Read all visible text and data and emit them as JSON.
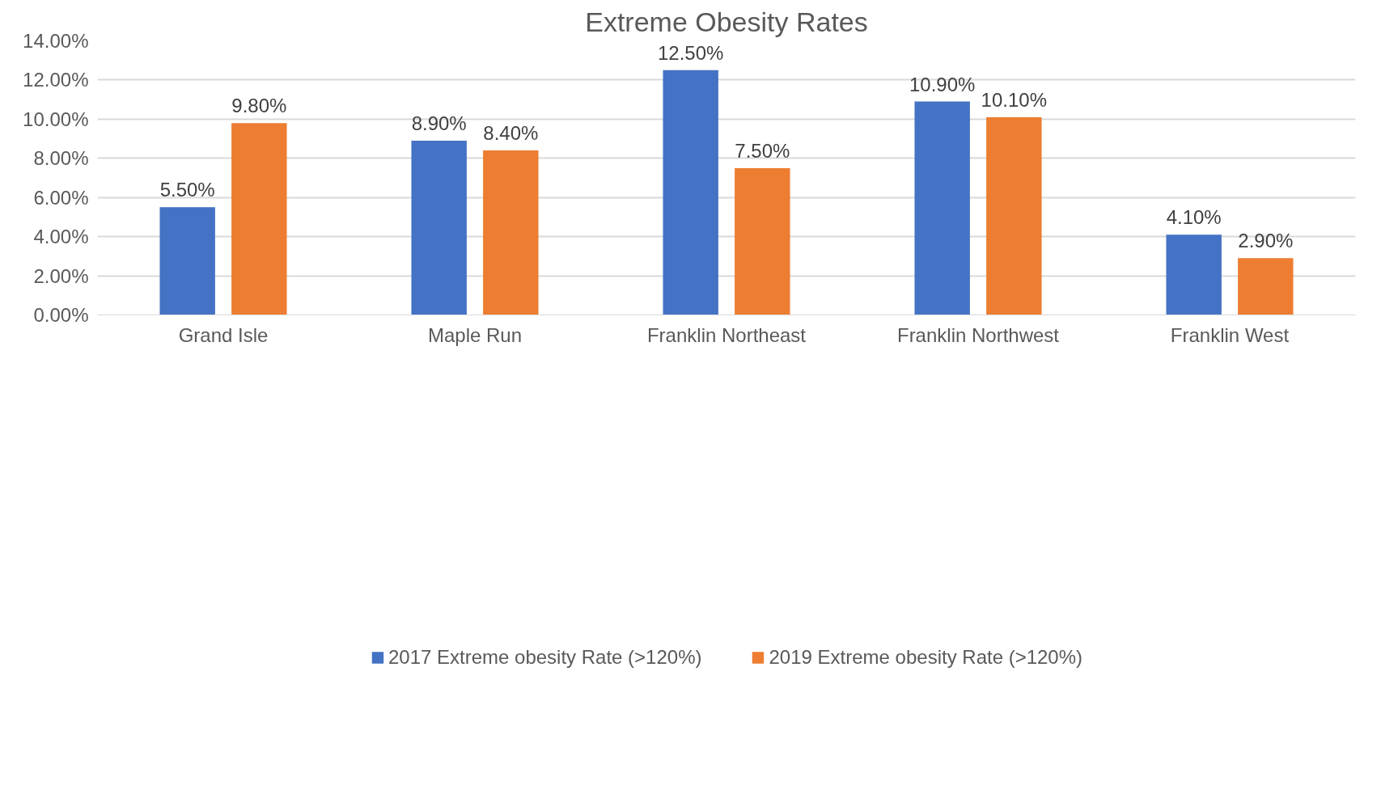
{
  "chart_data": {
    "type": "bar",
    "title": "Extreme Obesity Rates",
    "categories": [
      "Grand Isle",
      "Maple Run",
      "Franklin Northeast",
      "Franklin Northwest",
      "Franklin West"
    ],
    "series": [
      {
        "name": "2017 Extreme obesity Rate (>120%)",
        "color": "#4472c4",
        "values": [
          5.5,
          8.9,
          12.5,
          10.9,
          4.1
        ],
        "value_labels": [
          "5.50%",
          "8.90%",
          "12.50%",
          "10.90%",
          "4.10%"
        ]
      },
      {
        "name": "2019 Extreme obesity Rate (>120%)",
        "color": "#ed7d31",
        "values": [
          9.8,
          8.4,
          7.5,
          10.1,
          2.9
        ],
        "value_labels": [
          "9.80%",
          "8.40%",
          "7.50%",
          "10.10%",
          "2.90%"
        ]
      }
    ],
    "ylim": [
      0,
      14
    ],
    "yticks": [
      {
        "value": 0,
        "label": "0.00%"
      },
      {
        "value": 2,
        "label": "2.00%"
      },
      {
        "value": 4,
        "label": "4.00%"
      },
      {
        "value": 6,
        "label": "6.00%"
      },
      {
        "value": 8,
        "label": "8.00%"
      },
      {
        "value": 10,
        "label": "10.00%"
      },
      {
        "value": 12,
        "label": "12.00%"
      },
      {
        "value": 14,
        "label": "14.00%"
      }
    ],
    "grid": "y",
    "legend": "bottom"
  }
}
